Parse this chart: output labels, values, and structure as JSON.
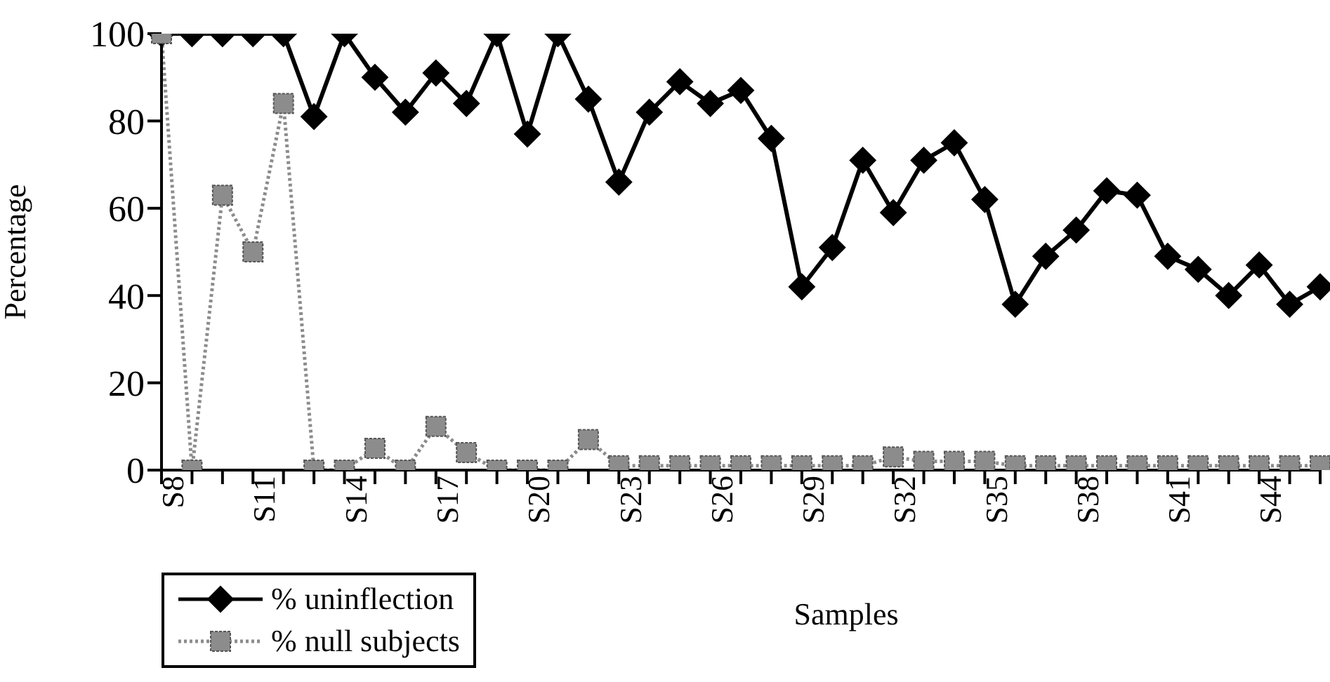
{
  "chart_data": {
    "type": "line",
    "xlabel": "Samples",
    "ylabel": "Percentage",
    "categories": [
      "S8",
      null,
      null,
      "S11",
      null,
      null,
      "S14",
      null,
      null,
      "S17",
      null,
      null,
      "S20",
      null,
      null,
      "S23",
      null,
      null,
      "S26",
      null,
      null,
      "S29",
      null,
      null,
      "S32",
      null,
      null,
      "S35",
      null,
      null,
      "S38",
      null,
      null,
      "S41",
      null,
      null,
      "S44",
      null,
      null
    ],
    "series": [
      {
        "name": "% uninflection",
        "color": "#000000",
        "marker": "diamond",
        "line_style": "solid",
        "values": [
          100,
          100,
          100,
          100,
          100,
          81,
          100,
          90,
          82,
          91,
          84,
          100,
          77,
          100,
          85,
          66,
          82,
          89,
          84,
          87,
          76,
          42,
          51,
          71,
          59,
          71,
          75,
          62,
          38,
          49,
          55,
          64,
          63,
          49,
          46,
          40,
          47,
          38,
          42
        ]
      },
      {
        "name": "% null subjects",
        "color": "#8c8c8c",
        "marker": "square",
        "line_style": "dotted",
        "values": [
          100,
          0,
          63,
          50,
          84,
          0,
          0,
          5,
          0,
          10,
          4,
          0,
          0,
          0,
          7,
          1,
          1,
          1,
          1,
          1,
          1,
          1,
          1,
          1,
          3,
          2,
          2,
          2,
          1,
          1,
          1,
          1,
          1,
          1,
          1,
          1,
          1,
          1,
          1
        ]
      }
    ],
    "ylim": [
      0,
      100
    ],
    "yticks": [
      0,
      20,
      40,
      60,
      80,
      100
    ],
    "grid": false,
    "legend": "bottom left"
  }
}
